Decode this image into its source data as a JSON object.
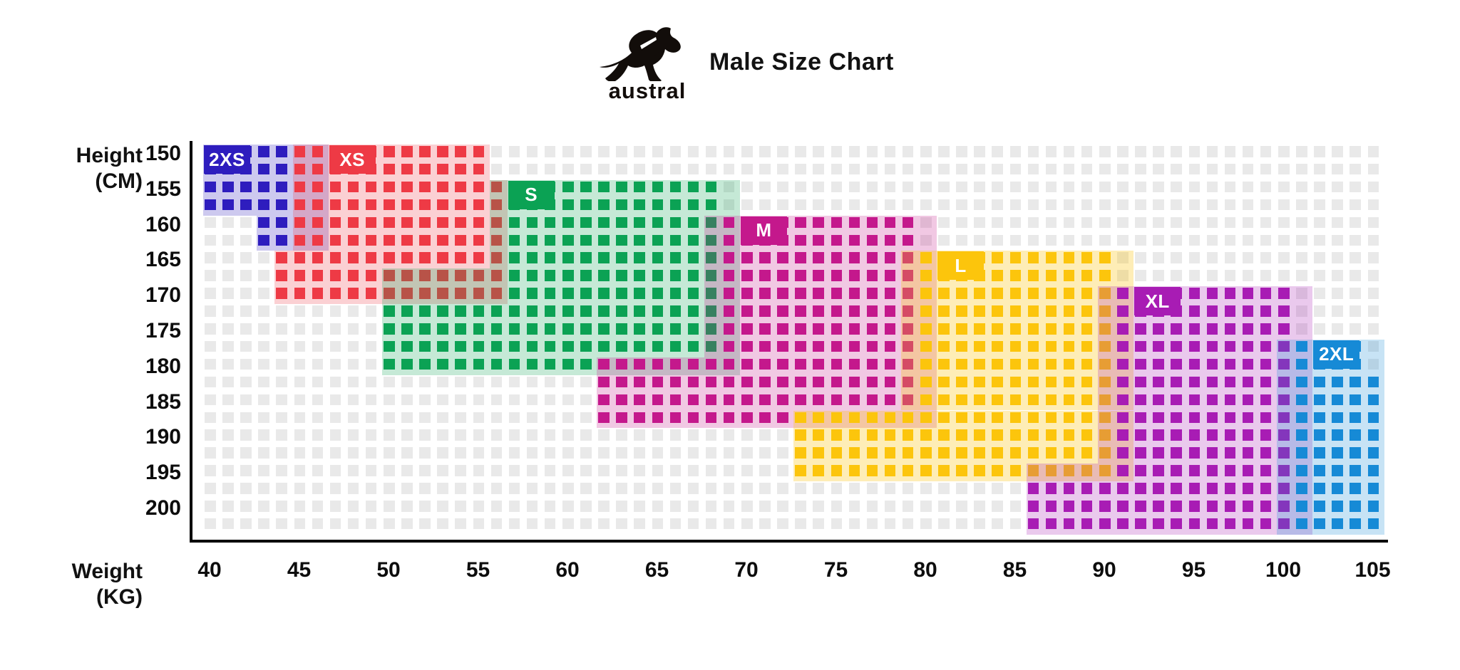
{
  "header": {
    "title": "Male Size Chart",
    "brand": "austral",
    "logo_icon": "kangaroo-logo-icon"
  },
  "axes": {
    "y": {
      "title_line1": "Height",
      "title_line2": "(CM)",
      "ticks": [
        150,
        155,
        160,
        165,
        170,
        175,
        180,
        185,
        190,
        195,
        200
      ]
    },
    "x": {
      "title_line1": "Weight",
      "title_line2": "(KG)",
      "ticks": [
        40,
        45,
        50,
        55,
        60,
        65,
        70,
        75,
        80,
        85,
        90,
        95,
        100,
        105
      ]
    }
  },
  "chart_data": {
    "type": "heatmap",
    "title": "Male Size Chart",
    "xlabel": "Weight (KG)",
    "ylabel": "Height (CM)",
    "x_range_kg": [
      40,
      105
    ],
    "x_step_kg": 1,
    "y_range_cm": [
      150,
      202.5
    ],
    "y_step_cm": 2.5,
    "grid_cols": 66,
    "grid_rows": 22,
    "empty_cell_color": "#e9e9e9",
    "sizes": [
      {
        "label": "2XS",
        "color": "#2e1dbe",
        "tint_alpha": 0.24,
        "weight_kg": [
          40,
          44
        ],
        "height_cm": [
          150,
          162.5
        ],
        "tint_rects": [
          [
            40,
            46,
            150,
            157.5
          ],
          [
            43,
            46,
            160,
            162.5
          ]
        ],
        "square_rects": [
          [
            40,
            44,
            150,
            157.5
          ],
          [
            43,
            44,
            160,
            162.5
          ]
        ],
        "label_box": {
          "col": 40,
          "row": 150
        }
      },
      {
        "label": "XS",
        "color": "#ee3a45",
        "tint_alpha": 0.24,
        "weight_kg": [
          44,
          56
        ],
        "height_cm": [
          150,
          170
        ],
        "tint_rects": [
          [
            45,
            55,
            150,
            152.5
          ],
          [
            45,
            56,
            155,
            162.5
          ],
          [
            44,
            56,
            165,
            170
          ]
        ],
        "square_rects": [
          [
            45,
            55,
            150,
            152.5
          ],
          [
            45,
            56,
            155,
            162.5
          ],
          [
            44,
            56,
            165,
            170
          ]
        ],
        "label_box": {
          "col": 47,
          "row": 150
        }
      },
      {
        "label": "S",
        "color": "#0ba254",
        "tint_alpha": 0.24,
        "weight_kg": [
          50,
          68
        ],
        "height_cm": [
          155,
          180
        ],
        "tint_rects": [
          [
            56,
            69,
            155,
            165
          ],
          [
            50,
            69,
            167.5,
            180
          ]
        ],
        "square_rects": [
          [
            57,
            68,
            155,
            170
          ],
          [
            50,
            68,
            172.5,
            180
          ]
        ],
        "label_box": {
          "col": 57,
          "row": 155
        }
      },
      {
        "label": "M",
        "color": "#c4188c",
        "tint_alpha": 0.24,
        "weight_kg": [
          62,
          79
        ],
        "height_cm": [
          160,
          187.5
        ],
        "tint_rects": [
          [
            68,
            80,
            160,
            177.5
          ],
          [
            62,
            80,
            180,
            187.5
          ]
        ],
        "square_rects": [
          [
            69,
            79,
            160,
            177.5
          ],
          [
            62,
            79,
            180,
            185
          ],
          [
            62,
            72,
            187.5,
            187.5
          ]
        ],
        "label_box": {
          "col": 70,
          "row": 160
        }
      },
      {
        "label": "L",
        "color": "#fcc50c",
        "tint_alpha": 0.3,
        "weight_kg": [
          73,
          90
        ],
        "height_cm": [
          165,
          195
        ],
        "tint_rects": [
          [
            79,
            91,
            165,
            185
          ],
          [
            73,
            91,
            187.5,
            195
          ]
        ],
        "square_rects": [
          [
            80,
            90,
            165,
            185
          ],
          [
            73,
            90,
            187.5,
            195
          ]
        ],
        "label_box": {
          "col": 81,
          "row": 165
        }
      },
      {
        "label": "XL",
        "color": "#a81cb4",
        "tint_alpha": 0.24,
        "weight_kg": [
          86,
          100
        ],
        "height_cm": [
          170,
          202.5
        ],
        "tint_rects": [
          [
            90,
            101,
            170,
            195
          ],
          [
            86,
            89,
            195,
            195
          ],
          [
            86,
            101,
            197.5,
            202.5
          ]
        ],
        "square_rects": [
          [
            91,
            100,
            170,
            195
          ],
          [
            86,
            100,
            197.5,
            202.5
          ]
        ],
        "label_box": {
          "col": 92,
          "row": 170
        }
      },
      {
        "label": "2XL",
        "color": "#168ad6",
        "tint_alpha": 0.24,
        "weight_kg": [
          101,
          105
        ],
        "height_cm": [
          177.5,
          202.5
        ],
        "tint_rects": [
          [
            100,
            105,
            177.5,
            202.5
          ]
        ],
        "square_rects": [
          [
            101,
            104,
            177.5,
            180
          ],
          [
            101,
            105,
            182.5,
            202.5
          ]
        ],
        "label_box": {
          "col": 102,
          "row": 177.5
        }
      }
    ]
  }
}
